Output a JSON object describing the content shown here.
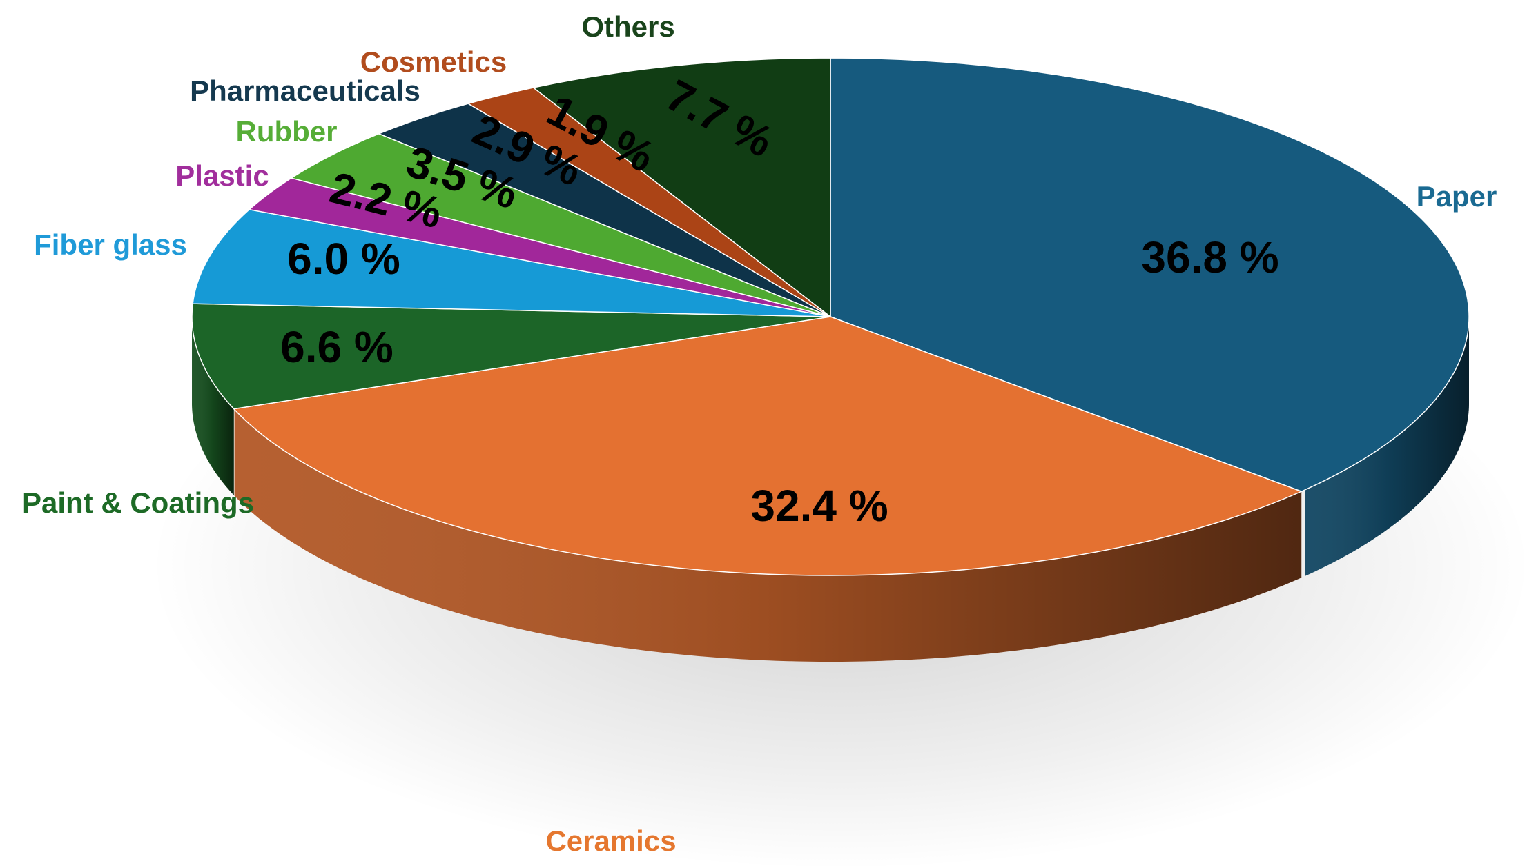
{
  "chart_data": {
    "type": "pie",
    "title": "",
    "start_angle_deg": 90,
    "direction": "clockwise",
    "unit": "%",
    "slices": [
      {
        "label": "Paper",
        "value": 36.8,
        "value_label": "36.8 %",
        "color": "#165a7e",
        "label_color": "#1a6a92"
      },
      {
        "label": "Ceramics",
        "value": 32.4,
        "value_label": "32.4 %",
        "color": "#e47131",
        "label_color": "#e5772f"
      },
      {
        "label": "Paint & Coatings",
        "value": 6.6,
        "value_label": "6.6 %",
        "color": "#1c6528",
        "label_color": "#1d6a26"
      },
      {
        "label": "Fiber glass",
        "value": 6.0,
        "value_label": "6.0 %",
        "color": "#169ad6",
        "label_color": "#1f9ad8"
      },
      {
        "label": "Plastic",
        "value": 2.2,
        "value_label": "2.2 %",
        "color": "#a1279a",
        "label_color": "#a12e9c"
      },
      {
        "label": "Rubber",
        "value": 3.5,
        "value_label": "3.5 %",
        "color": "#4ea931",
        "label_color": "#56ad37"
      },
      {
        "label": "Pharmaceuticals",
        "value": 2.9,
        "value_label": "2.9 %",
        "color": "#0e3349",
        "label_color": "#15394f"
      },
      {
        "label": "Cosmetics",
        "value": 1.9,
        "value_label": "1.9 %",
        "color": "#ab4416",
        "label_color": "#b14c1d"
      },
      {
        "label": "Others",
        "value": 7.7,
        "value_label": "7.7 %",
        "color": "#113d14",
        "label_color": "#19441b"
      }
    ]
  }
}
